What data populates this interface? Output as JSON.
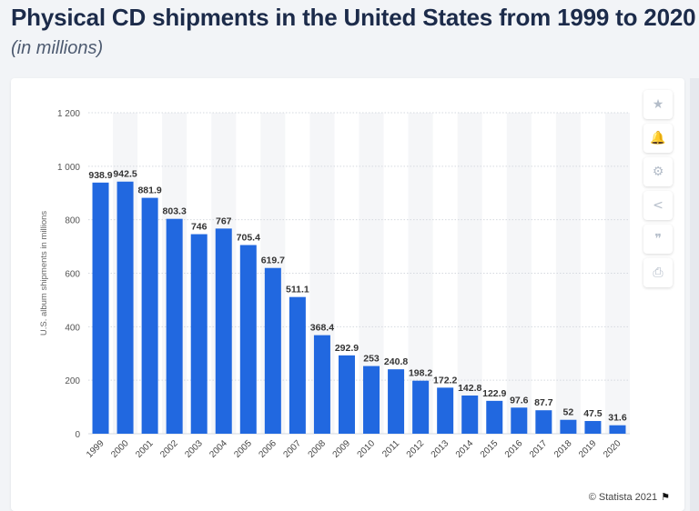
{
  "header": {
    "title": "Physical CD shipments in the United States from 1999 to 2020",
    "subtitle": "(in millions)"
  },
  "toolbar": [
    {
      "name": "star-icon",
      "glyph": "★"
    },
    {
      "name": "bell-icon",
      "glyph": "🔔"
    },
    {
      "name": "gear-icon",
      "glyph": "⚙"
    },
    {
      "name": "share-icon",
      "glyph": "<"
    },
    {
      "name": "quote-icon",
      "glyph": "❞"
    },
    {
      "name": "print-icon",
      "glyph": "⎙"
    }
  ],
  "credit": {
    "text": "© Statista 2021",
    "flag": "⚑"
  },
  "colors": {
    "bar": "#2168e0",
    "grid": "#d5d9df",
    "band": "#f5f6f8"
  },
  "chart_data": {
    "type": "bar",
    "title": "",
    "xlabel": "",
    "ylabel": "U.S. album shipments in millions",
    "categories": [
      "1999",
      "2000",
      "2001",
      "2002",
      "2003",
      "2004",
      "2005",
      "2006",
      "2007",
      "2008",
      "2009",
      "2010",
      "2011",
      "2012",
      "2013",
      "2014",
      "2015",
      "2016",
      "2017",
      "2018",
      "2019",
      "2020"
    ],
    "values": [
      938.9,
      942.5,
      881.9,
      803.3,
      746,
      767,
      705.4,
      619.7,
      511.1,
      368.4,
      292.9,
      253,
      240.8,
      198.2,
      172.2,
      142.8,
      122.9,
      97.6,
      87.7,
      52,
      47.5,
      31.6
    ],
    "value_labels": [
      "938.9",
      "942.5",
      "881.9",
      "803.3",
      "746",
      "767",
      "705.4",
      "619.7",
      "511.1",
      "368.4",
      "292.9",
      "253",
      "240.8",
      "198.2",
      "172.2",
      "142.8",
      "122.9",
      "97.6",
      "87.7",
      "52",
      "47.5",
      "31.6"
    ],
    "ylim": [
      0,
      1200
    ],
    "yticks": [
      0,
      200,
      400,
      600,
      800,
      1000,
      1200
    ],
    "ytick_labels": [
      "0",
      "200",
      "400",
      "600",
      "800",
      "1 000",
      "1 200"
    ],
    "grid": true,
    "legend": "none"
  }
}
